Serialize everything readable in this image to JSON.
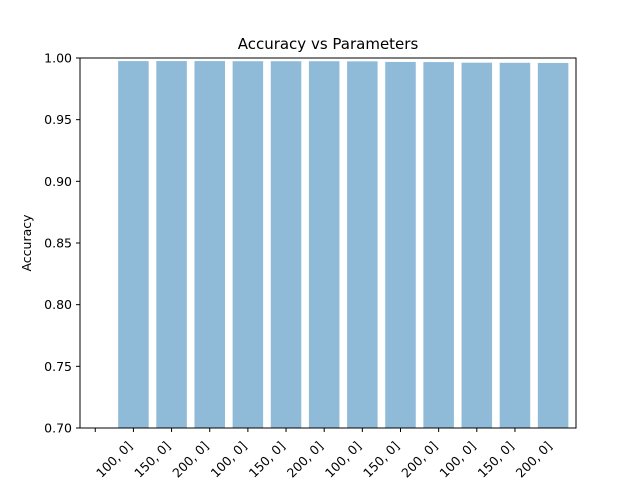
{
  "chart_data": {
    "type": "bar",
    "title": "Accuracy vs Parameters",
    "xlabel": "",
    "ylabel": "Accuracy",
    "ylim": [
      0.7,
      1.0
    ],
    "yticks": [
      "0.70",
      "0.75",
      "0.80",
      "0.85",
      "0.90",
      "0.95",
      "1.00"
    ],
    "categories": [
      "100, 0]",
      "150, 0]",
      "200, 0]",
      "100, 0]",
      "150, 0]",
      "200, 0]",
      "100, 0]",
      "150, 0]",
      "200, 0]",
      "100, 0]",
      "150, 0]",
      "200, 0]"
    ],
    "values": [
      0.9975,
      0.9975,
      0.9975,
      0.9974,
      0.9974,
      0.9974,
      0.9973,
      0.9968,
      0.9967,
      0.9962,
      0.9961,
      0.996
    ],
    "grid": false,
    "bar_color": "#8fbbd9",
    "bar_alpha_base": "#1f77b4"
  }
}
